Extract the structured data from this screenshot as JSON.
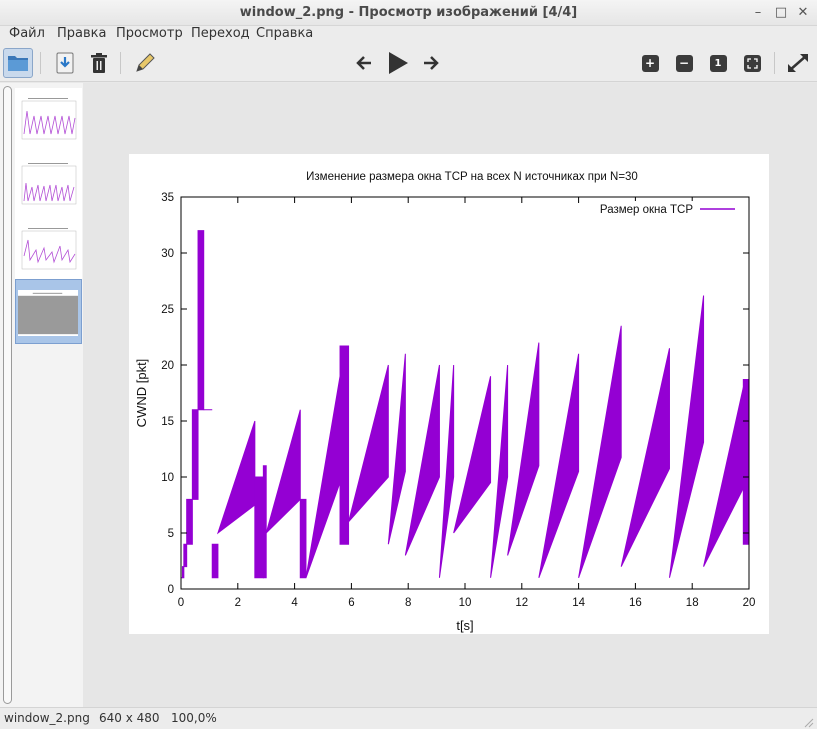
{
  "window": {
    "title": "window_2.png - Просмотр изображений [4/4]",
    "min_glyph": "–",
    "max_glyph": "□",
    "close_glyph": "✕"
  },
  "menu": [
    "Файл",
    "Правка",
    "Просмотр",
    "Переход",
    "Справка"
  ],
  "toolbar": {
    "buttons": [
      "open-folder-icon",
      "save-icon",
      "delete-icon",
      "edit-pencil-icon",
      "previous-arrow-icon",
      "play-slideshow-icon",
      "next-arrow-icon",
      "zoom-in-icon",
      "zoom-out-icon",
      "zoom-100-icon",
      "fit-window-icon",
      "fullscreen-icon"
    ],
    "zoom_in": "+",
    "zoom_out": "−",
    "zoom_100": "1"
  },
  "thumbnails": {
    "count": 4,
    "selected": 4
  },
  "status": {
    "filename": "window_2.png",
    "dimensions": "640 x 480",
    "zoom": "100,0%"
  },
  "colors": {
    "series": "#9400d3",
    "selection": "#a9c5e8"
  },
  "chart_data": {
    "type": "line",
    "title": "Изменение размера окна TCP на всех N источниках  при N=30",
    "xlabel": "t[s]",
    "ylabel": "CWND [pkt]",
    "xlim": [
      0,
      20
    ],
    "ylim": [
      0,
      35
    ],
    "xticks": [
      0,
      2,
      4,
      6,
      8,
      10,
      12,
      14,
      16,
      18,
      20
    ],
    "yticks": [
      0,
      5,
      10,
      15,
      20,
      25,
      30,
      35
    ],
    "legend_position": "top-right",
    "series": [
      {
        "name": "Размер окна TCP",
        "teeth": [
          [
            0.0,
            1,
            1,
            0.05
          ],
          [
            0.05,
            1,
            2,
            0.05
          ],
          [
            0.1,
            2,
            4,
            0.05
          ],
          [
            0.2,
            4,
            8,
            0.1
          ],
          [
            0.4,
            8,
            16,
            0.05
          ],
          [
            0.6,
            16,
            32,
            0.08
          ],
          [
            0.8,
            16,
            16,
            0.3
          ],
          [
            1.1,
            1,
            4,
            0.08
          ],
          [
            1.3,
            5,
            15,
            0.08
          ],
          [
            2.6,
            1,
            10,
            0.08
          ],
          [
            2.9,
            1,
            11,
            0.06
          ],
          [
            3.0,
            5,
            16,
            0.08
          ],
          [
            4.2,
            1,
            8,
            0.06
          ],
          [
            4.4,
            1,
            19,
            0.08
          ],
          [
            5.6,
            4,
            21.7,
            0.08
          ],
          [
            5.9,
            6,
            20,
            0.08
          ],
          [
            7.3,
            4,
            21,
            0.08
          ],
          [
            7.9,
            3,
            20,
            0.08
          ],
          [
            9.1,
            1,
            20,
            0.08
          ],
          [
            9.6,
            5,
            19,
            0.08
          ],
          [
            10.9,
            1,
            20,
            0.08
          ],
          [
            11.5,
            3,
            22,
            0.08
          ],
          [
            12.6,
            1,
            21,
            0.08
          ],
          [
            14.0,
            1,
            23.5,
            0.08
          ],
          [
            15.5,
            2,
            21.5,
            0.08
          ],
          [
            17.2,
            1,
            26.2,
            0.08
          ],
          [
            18.4,
            2,
            18,
            0.08
          ],
          [
            19.8,
            4,
            18.7,
            0.08
          ]
        ]
      }
    ]
  }
}
